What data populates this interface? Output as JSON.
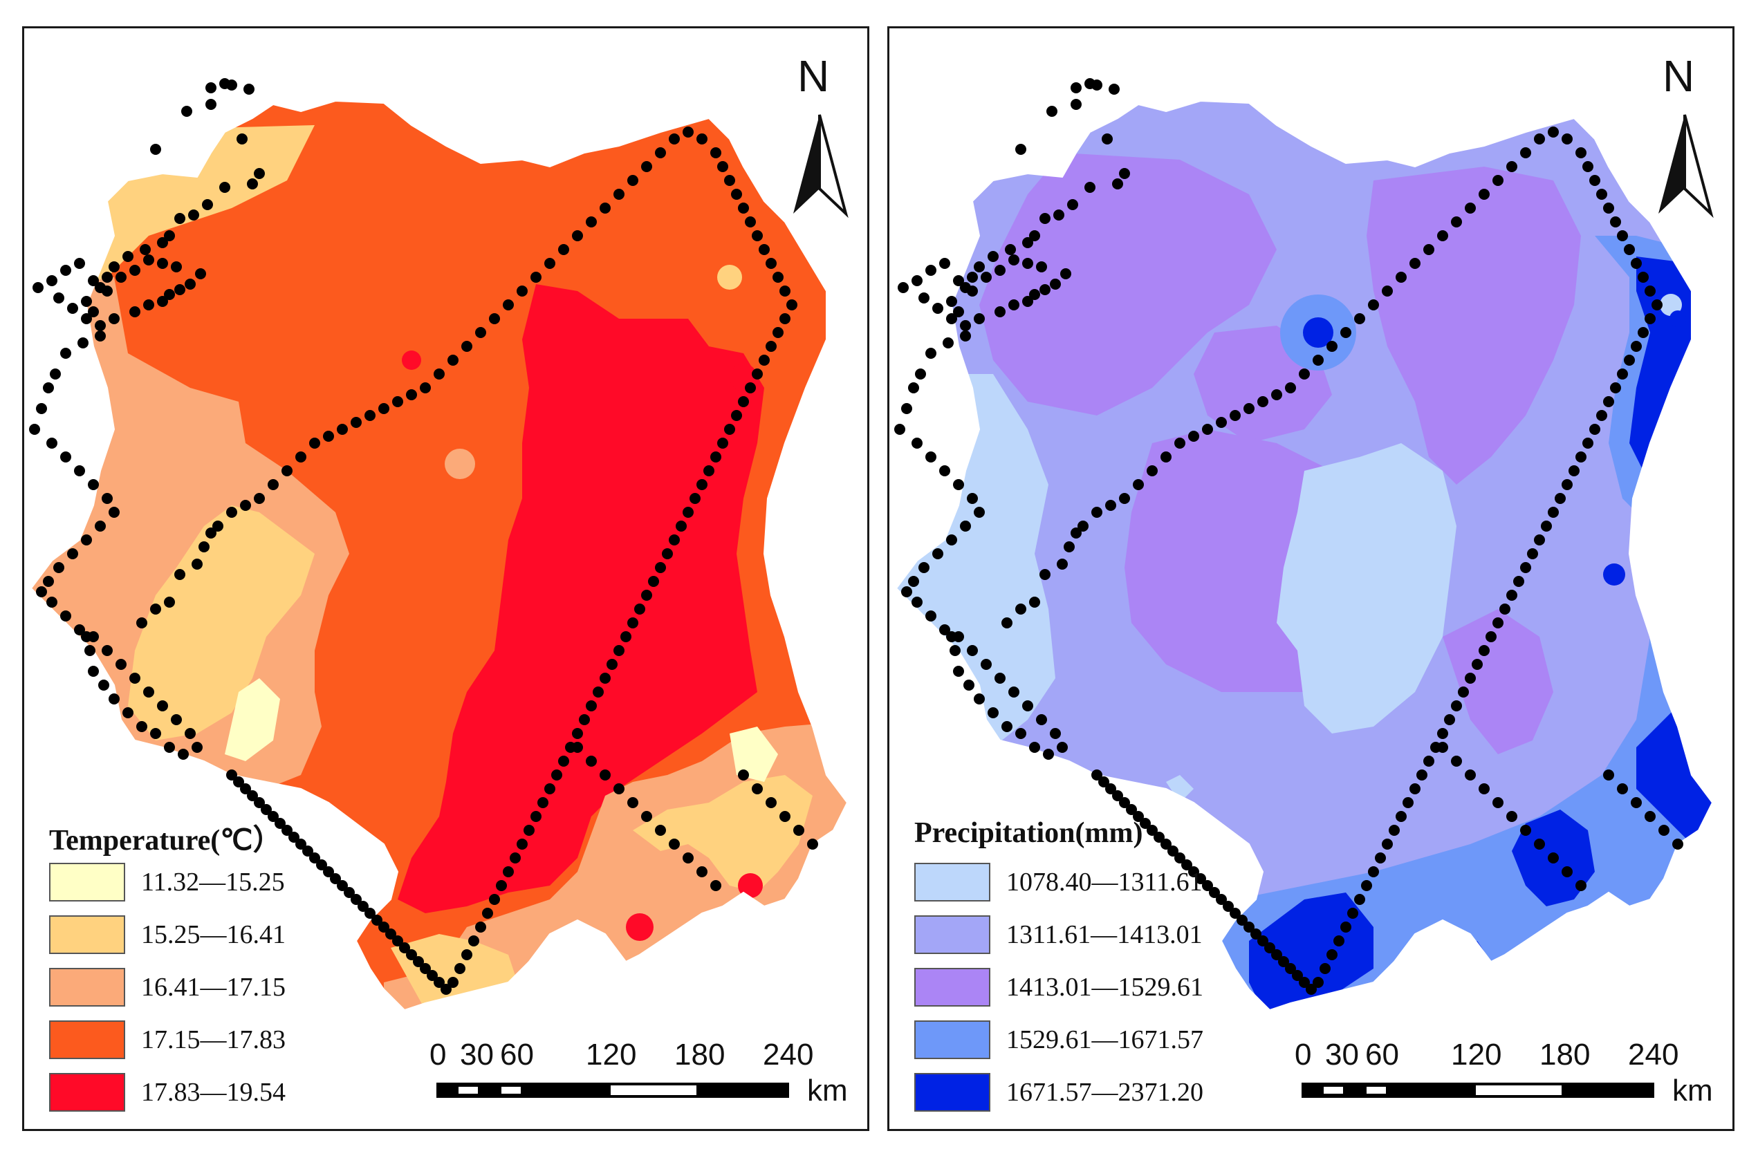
{
  "panels": [
    {
      "id": "temperature",
      "legend_title": "Temperature(℃）",
      "classes": [
        {
          "label": "11.32—15.25",
          "color": "#FFFFC6"
        },
        {
          "label": "15.25—16.41",
          "color": "#FFD27F"
        },
        {
          "label": "16.41—17.15",
          "color": "#FBAA79"
        },
        {
          "label": "17.15—17.83",
          "color": "#FC5A1E"
        },
        {
          "label": "17.83—19.54",
          "color": "#FF0A28"
        }
      ]
    },
    {
      "id": "precipitation",
      "legend_title": "Precipitation(mm)",
      "classes": [
        {
          "label": "1078.40—1311.61",
          "color": "#BDD7FB"
        },
        {
          "label": "1311.61—1413.01",
          "color": "#A3A6F7"
        },
        {
          "label": "1413.01—1529.61",
          "color": "#AB85F5"
        },
        {
          "label": "1529.61—1671.57",
          "color": "#6E98F9"
        },
        {
          "label": "1671.57—2371.20",
          "color": "#0022E4"
        }
      ]
    }
  ],
  "north_arrow": {
    "letter": "N"
  },
  "scale_bar": {
    "ticks": [
      "0",
      "30",
      "60",
      "120",
      "180",
      "240"
    ],
    "unit": "km"
  },
  "colors": {
    "station": "#000000",
    "frame": "#1a1a1a"
  }
}
